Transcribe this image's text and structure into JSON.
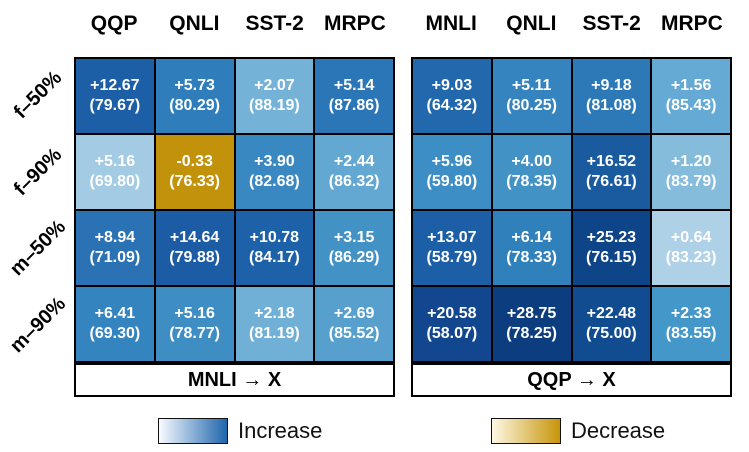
{
  "chart_data": {
    "type": "heatmap",
    "row_labels": [
      "f–50%",
      "f–90%",
      "m–50%",
      "m–90%"
    ],
    "value_format": "delta (base_score)",
    "grids": [
      {
        "title": "MNLI → X",
        "columns": [
          "QQP",
          "QNLI",
          "SST-2",
          "MRPC"
        ],
        "rows": [
          {
            "label": "f–50%",
            "cells": [
              {
                "delta": "+12.67",
                "base": "(79.67)",
                "color": "#1d5fa7",
                "direction": "increase"
              },
              {
                "delta": "+5.73",
                "base": "(80.29)",
                "color": "#2f7dbb",
                "direction": "increase"
              },
              {
                "delta": "+2.07",
                "base": "(88.19)",
                "color": "#74b2d8",
                "direction": "increase"
              },
              {
                "delta": "+5.14",
                "base": "(87.86)",
                "color": "#2b76b6",
                "direction": "increase"
              }
            ]
          },
          {
            "label": "f–90%",
            "cells": [
              {
                "delta": "+5.16",
                "base": "(69.80)",
                "color": "#a3cbe3",
                "direction": "increase"
              },
              {
                "delta": "-0.33",
                "base": "(76.33)",
                "color": "#c3920b",
                "direction": "decrease"
              },
              {
                "delta": "+3.90",
                "base": "(82.68)",
                "color": "#3a88c1",
                "direction": "increase"
              },
              {
                "delta": "+2.44",
                "base": "(86.32)",
                "color": "#62a8d2",
                "direction": "increase"
              }
            ]
          },
          {
            "label": "m–50%",
            "cells": [
              {
                "delta": "+8.94",
                "base": "(71.09)",
                "color": "#2a72b4",
                "direction": "increase"
              },
              {
                "delta": "+14.64",
                "base": "(79.88)",
                "color": "#1b5ca5",
                "direction": "increase"
              },
              {
                "delta": "+10.78",
                "base": "(84.17)",
                "color": "#1d61a9",
                "direction": "increase"
              },
              {
                "delta": "+3.15",
                "base": "(86.29)",
                "color": "#4292c6",
                "direction": "increase"
              }
            ]
          },
          {
            "label": "m–90%",
            "cells": [
              {
                "delta": "+6.41",
                "base": "(69.30)",
                "color": "#3484bf",
                "direction": "increase"
              },
              {
                "delta": "+5.16",
                "base": "(78.77)",
                "color": "#3e8ec4",
                "direction": "increase"
              },
              {
                "delta": "+2.18",
                "base": "(81.19)",
                "color": "#70b0d7",
                "direction": "increase"
              },
              {
                "delta": "+2.69",
                "base": "(85.52)",
                "color": "#57a0ce",
                "direction": "increase"
              }
            ]
          }
        ]
      },
      {
        "title": "QQP → X",
        "columns": [
          "MNLI",
          "QNLI",
          "SST-2",
          "MRPC"
        ],
        "rows": [
          {
            "label": "f–50%",
            "cells": [
              {
                "delta": "+9.03",
                "base": "(64.32)",
                "color": "#2268ad",
                "direction": "increase"
              },
              {
                "delta": "+5.11",
                "base": "(80.25)",
                "color": "#3584bf",
                "direction": "increase"
              },
              {
                "delta": "+9.18",
                "base": "(81.08)",
                "color": "#2d79b7",
                "direction": "increase"
              },
              {
                "delta": "+1.56",
                "base": "(85.43)",
                "color": "#65aad4",
                "direction": "increase"
              }
            ]
          },
          {
            "label": "f–90%",
            "cells": [
              {
                "delta": "+5.96",
                "base": "(59.80)",
                "color": "#3d8ec4",
                "direction": "increase"
              },
              {
                "delta": "+4.00",
                "base": "(78.35)",
                "color": "#4292c6",
                "direction": "increase"
              },
              {
                "delta": "+16.52",
                "base": "(76.61)",
                "color": "#1a5a9f",
                "direction": "increase"
              },
              {
                "delta": "+1.20",
                "base": "(83.79)",
                "color": "#85bcdc",
                "direction": "increase"
              }
            ]
          },
          {
            "label": "m–50%",
            "cells": [
              {
                "delta": "+13.07",
                "base": "(58.79)",
                "color": "#1c5fa7",
                "direction": "increase"
              },
              {
                "delta": "+6.14",
                "base": "(78.33)",
                "color": "#3080bc",
                "direction": "increase"
              },
              {
                "delta": "+25.23",
                "base": "(76.15)",
                "color": "#0e4488",
                "direction": "increase"
              },
              {
                "delta": "+0.64",
                "base": "(83.23)",
                "color": "#aed1e7",
                "direction": "increase"
              }
            ]
          },
          {
            "label": "m–90%",
            "cells": [
              {
                "delta": "+20.58",
                "base": "(58.07)",
                "color": "#12478f",
                "direction": "increase"
              },
              {
                "delta": "+28.75",
                "base": "(78.25)",
                "color": "#0b3d7f",
                "direction": "increase"
              },
              {
                "delta": "+22.48",
                "base": "(75.00)",
                "color": "#114b90",
                "direction": "increase"
              },
              {
                "delta": "+2.33",
                "base": "(83.55)",
                "color": "#4497c9",
                "direction": "increase"
              }
            ]
          }
        ]
      }
    ],
    "legend": [
      {
        "label": "Increase",
        "gradient_from": "#f7fbff",
        "gradient_to": "#1f66ad"
      },
      {
        "label": "Decrease",
        "gradient_from": "#fdf8e3",
        "gradient_to": "#c8950a"
      }
    ]
  }
}
